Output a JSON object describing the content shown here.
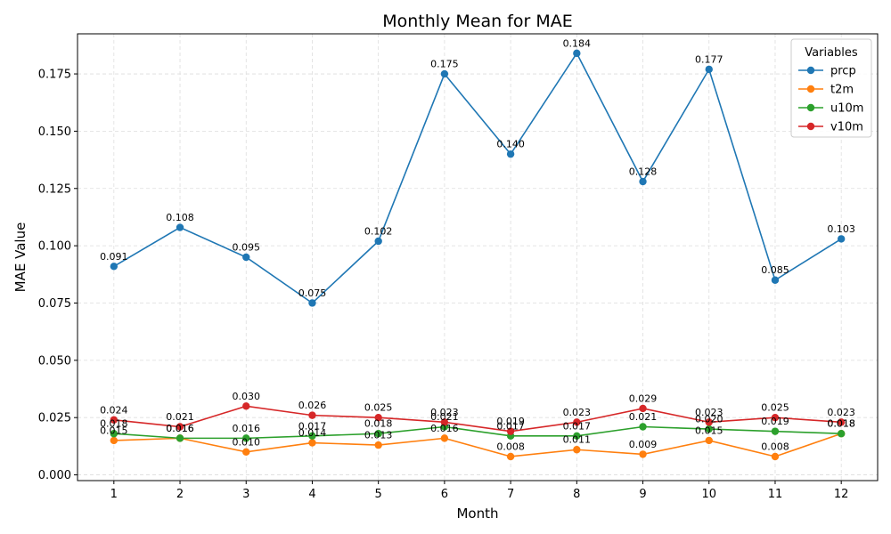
{
  "chart_data": {
    "type": "line",
    "title": "Monthly Mean for MAE",
    "xlabel": "Month",
    "ylabel": "MAE Value",
    "x": [
      1,
      2,
      3,
      4,
      5,
      6,
      7,
      8,
      9,
      10,
      11,
      12
    ],
    "ylim": [
      -0.0025,
      0.1925
    ],
    "yticks": [
      0.0,
      0.025,
      0.05,
      0.075,
      0.1,
      0.125,
      0.15,
      0.175
    ],
    "ytick_labels": [
      "0.000",
      "0.025",
      "0.050",
      "0.075",
      "0.100",
      "0.125",
      "0.150",
      "0.175"
    ],
    "grid": true,
    "legend": {
      "title": "Variables",
      "placement": "top-right"
    },
    "series": [
      {
        "name": "prcp",
        "color": "#1f77b4",
        "values": [
          0.091,
          0.108,
          0.095,
          0.075,
          0.102,
          0.175,
          0.14,
          0.184,
          0.128,
          0.177,
          0.085,
          0.103
        ]
      },
      {
        "name": "t2m",
        "color": "#ff7f0e",
        "values": [
          0.015,
          0.016,
          0.01,
          0.014,
          0.013,
          0.016,
          0.008,
          0.011,
          0.009,
          0.015,
          0.008,
          0.018
        ]
      },
      {
        "name": "u10m",
        "color": "#2ca02c",
        "values": [
          0.018,
          0.016,
          0.016,
          0.017,
          0.018,
          0.021,
          0.017,
          0.017,
          0.021,
          0.02,
          0.019,
          0.018
        ]
      },
      {
        "name": "v10m",
        "color": "#d62728",
        "values": [
          0.024,
          0.021,
          0.03,
          0.026,
          0.025,
          0.023,
          0.019,
          0.023,
          0.029,
          0.023,
          0.025,
          0.023
        ]
      }
    ]
  }
}
